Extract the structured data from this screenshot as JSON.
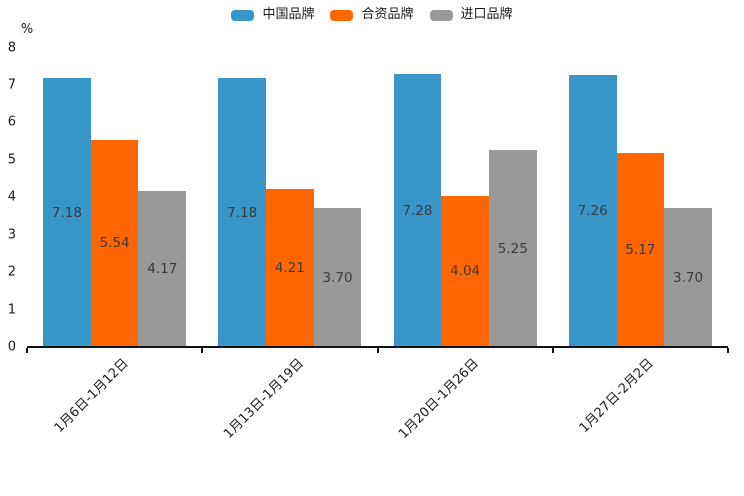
{
  "chart_data": {
    "type": "bar",
    "title": "",
    "unit_label": "%",
    "categories": [
      "1月6日-1月12日",
      "1月13日-1月19日",
      "1月20日-1月26日",
      "1月27日-2月2日"
    ],
    "series": [
      {
        "name": "中国品牌",
        "color": "#3896c8",
        "values": [
          7.18,
          7.18,
          7.28,
          7.26
        ]
      },
      {
        "name": "合资品牌",
        "color": "#ff6600",
        "values": [
          5.54,
          4.21,
          4.04,
          5.17
        ]
      },
      {
        "name": "进口品牌",
        "color": "#999999",
        "values": [
          4.17,
          3.7,
          5.25,
          3.7
        ]
      }
    ],
    "y_ticks": [
      0,
      1,
      2,
      3,
      4,
      5,
      6,
      7,
      8
    ],
    "ylim": [
      0,
      8
    ],
    "legend_position": "top-center",
    "grid": false,
    "value_labels": "inside-center, 2 decimals",
    "axis_color": "#111111",
    "text_color": "#1a1a1a",
    "value_label_color": "#3a3a3a",
    "background": "#ffffff"
  }
}
